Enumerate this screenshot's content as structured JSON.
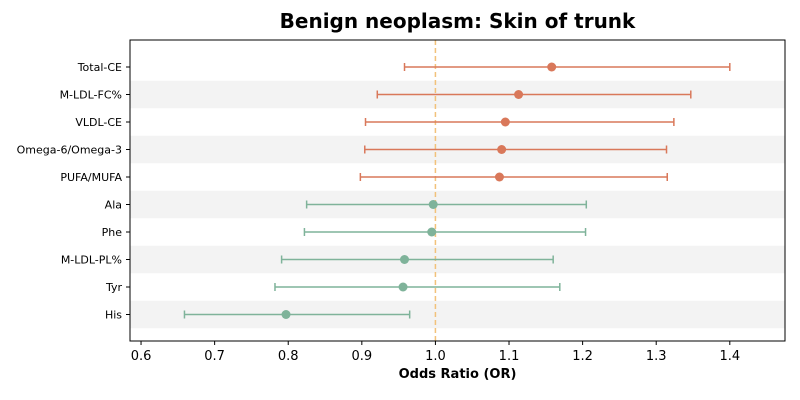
{
  "chart_data": {
    "type": "forest",
    "title": "Benign neoplasm: Skin of trunk",
    "xlabel": "Odds Ratio (OR)",
    "ylabel": "",
    "xlim": [
      0.585,
      1.475
    ],
    "xticks": [
      0.6,
      0.7,
      0.8,
      0.9,
      1.0,
      1.1,
      1.2,
      1.3,
      1.4
    ],
    "xtick_labels": [
      "0.6",
      "0.7",
      "0.8",
      "0.9",
      "1.0",
      "1.1",
      "1.2",
      "1.3",
      "1.4"
    ],
    "reference_line": 1.0,
    "grid": false,
    "alternating_row_shading": true,
    "colors": {
      "positive": "#d9785a",
      "negative": "#7fb39a",
      "reference": "#f2c27a",
      "row_shade": "#f3f3f3"
    },
    "rows": [
      {
        "label": "Total-CE",
        "or": 1.158,
        "lower": 0.958,
        "upper": 1.4,
        "color": "#d9785a"
      },
      {
        "label": "M-LDL-FC%",
        "or": 1.113,
        "lower": 0.921,
        "upper": 1.347,
        "color": "#d9785a"
      },
      {
        "label": "VLDL-CE",
        "or": 1.095,
        "lower": 0.905,
        "upper": 1.324,
        "color": "#d9785a"
      },
      {
        "label": "Omega-6/Omega-3",
        "or": 1.09,
        "lower": 0.904,
        "upper": 1.314,
        "color": "#d9785a"
      },
      {
        "label": "PUFA/MUFA",
        "or": 1.087,
        "lower": 0.898,
        "upper": 1.315,
        "color": "#d9785a"
      },
      {
        "label": "Ala",
        "or": 0.997,
        "lower": 0.825,
        "upper": 1.205,
        "color": "#7fb39a"
      },
      {
        "label": "Phe",
        "or": 0.995,
        "lower": 0.822,
        "upper": 1.204,
        "color": "#7fb39a"
      },
      {
        "label": "M-LDL-PL%",
        "or": 0.958,
        "lower": 0.791,
        "upper": 1.16,
        "color": "#7fb39a"
      },
      {
        "label": "Tyr",
        "or": 0.956,
        "lower": 0.782,
        "upper": 1.169,
        "color": "#7fb39a"
      },
      {
        "label": "His",
        "or": 0.797,
        "lower": 0.659,
        "upper": 0.965,
        "color": "#7fb39a"
      }
    ]
  }
}
